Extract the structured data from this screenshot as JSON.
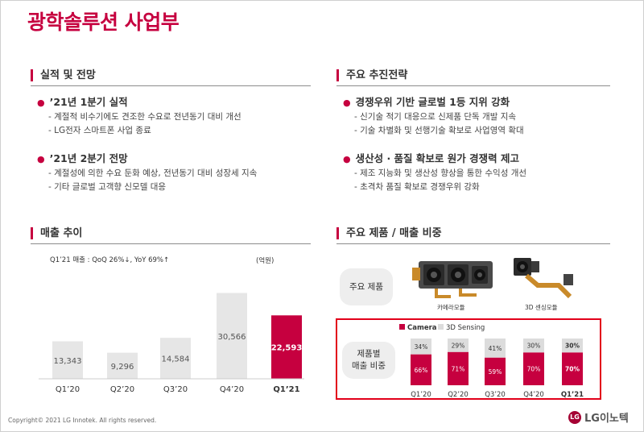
{
  "page": {
    "title": "광학솔루션 사업부"
  },
  "left": {
    "section1": {
      "heading": "실적 및 전망",
      "bullets": [
        {
          "text": "’21년 1분기 실적",
          "subs": [
            "- 계절적 비수기에도 견조한 수요로 전년동기 대비 개선",
            "- LG전자 스마트폰 사업 종료"
          ]
        },
        {
          "text": "’21년 2분기 전망",
          "subs": [
            "- 계절성에 의한 수요 둔화 예상, 전년동기 대비 성장세 지속",
            "- 기타 글로벌 고객향 신모델 대응"
          ]
        }
      ]
    },
    "section2": {
      "heading": "매출 추이",
      "note": "Q1’21 매출 : QoQ 26%↓, YoY 69%↑",
      "unit": "(억원)"
    }
  },
  "right": {
    "section1": {
      "heading": "주요 추진전략",
      "bullets": [
        {
          "text": "경쟁우위 기반 글로벌 1등 지위 강화",
          "subs": [
            "- 신기술 적기 대응으로 신제품 단독 개발 지속",
            "- 기술 차별화 및 선행기술 확보로 사업영역 확대"
          ]
        },
        {
          "text": "생산성 · 품질 확보로 원가 경쟁력 제고",
          "subs": [
            "- 제조 지능화 및 생산성 향상을 통한 수익성 개선",
            "- 초격차 품질 확보로 경쟁우위 강화"
          ]
        }
      ]
    },
    "section2": {
      "heading": "주요 제품 / 매출 비중",
      "products_label": "주요 제품",
      "product1_caption": "카메라모듈",
      "product2_caption": "3D 센싱모듈",
      "mix_label_line1": "제품별",
      "mix_label_line2": "매출 비중"
    }
  },
  "footer": {
    "copyright": "Copyright© 2021 LG Innotek. All rights reserved.",
    "logo_text": "LG이노텍",
    "logo_mark": "LG"
  },
  "colors": {
    "accent": "#c6003f",
    "bar_grey": "#e6e6e6",
    "highlight_border": "#e2001a"
  },
  "chart_data": [
    {
      "type": "bar",
      "categories": [
        "Q1’20",
        "Q2’20",
        "Q3’20",
        "Q4’20",
        "Q1’21"
      ],
      "values": [
        13343,
        9296,
        14584,
        30566,
        22593
      ],
      "value_labels": [
        "13,343",
        "9,296",
        "14,584",
        "30,566",
        "22,593"
      ],
      "highlight": "Q1’21",
      "ylabel": "",
      "unit": "(억원)"
    },
    {
      "type": "bar",
      "stacked": true,
      "percent": true,
      "categories": [
        "Q1’20",
        "Q2’20",
        "Q3’20",
        "Q4’20",
        "Q1’21"
      ],
      "series": [
        {
          "name": "Camera",
          "values": [
            66,
            71,
            59,
            70,
            70
          ],
          "labels": [
            "66%",
            "71%",
            "59%",
            "70%",
            "70%"
          ],
          "color": "#c6003f"
        },
        {
          "name": "3D Sensing",
          "values": [
            34,
            29,
            41,
            30,
            30
          ],
          "labels": [
            "34%",
            "29%",
            "41%",
            "30%",
            "30%"
          ],
          "color": "#dcdcdc"
        }
      ],
      "highlight": "Q1’21"
    }
  ]
}
